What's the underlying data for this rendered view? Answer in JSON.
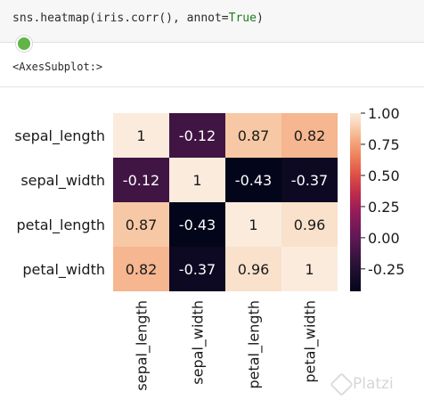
{
  "code_cell": {
    "code_prefix": "sns.heatmap(iris.corr(), annot=",
    "code_keyword": "True",
    "code_suffix": ")"
  },
  "output": {
    "text": "<AxesSubplot:>"
  },
  "watermark": {
    "text": "Platzi"
  },
  "chart_data": {
    "type": "heatmap",
    "rows": [
      "sepal_length",
      "sepal_width",
      "petal_length",
      "petal_width"
    ],
    "columns": [
      "sepal_length",
      "sepal_width",
      "petal_length",
      "petal_width"
    ],
    "values": [
      [
        1,
        -0.12,
        0.87,
        0.82
      ],
      [
        -0.12,
        1,
        -0.43,
        -0.37
      ],
      [
        0.87,
        -0.43,
        1,
        0.96
      ],
      [
        0.82,
        -0.37,
        0.96,
        1
      ]
    ],
    "annotations": [
      [
        "1",
        "-0.12",
        "0.87",
        "0.82"
      ],
      [
        "-0.12",
        "1",
        "-0.43",
        "-0.37"
      ],
      [
        "0.87",
        "-0.43",
        "1",
        "0.96"
      ],
      [
        "0.82",
        "-0.37",
        "0.96",
        "1"
      ]
    ],
    "colorbar": {
      "ticks": [
        "1.00",
        "0.75",
        "0.50",
        "0.25",
        "0.00",
        "-0.25"
      ],
      "tick_values": [
        1,
        0.75,
        0.5,
        0.25,
        0,
        -0.25
      ],
      "range": [
        -0.43,
        1
      ]
    },
    "colormap": "rocket"
  }
}
